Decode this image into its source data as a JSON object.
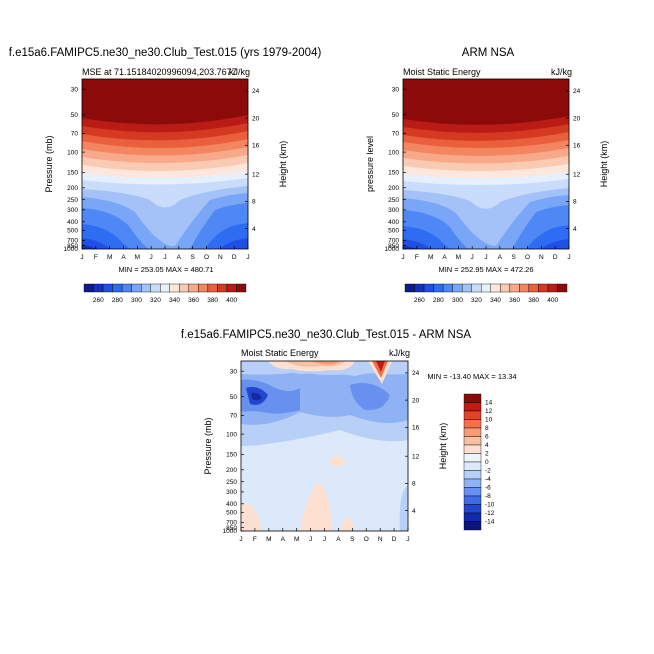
{
  "chart_data": [
    {
      "type": "heatmap",
      "panel": "model",
      "title": "f.e15a6.FAMIPC5.ne30_ne30.Club_Test.015 (yrs 1979-2004)",
      "left_label": "MSE at 71.15184020996094,203.7677",
      "right_label": "kJ/kg",
      "ylabel_left": "Pressure (mb)",
      "ylabel_right": "Height (km)",
      "x_ticks": [
        "J",
        "F",
        "M",
        "A",
        "M",
        "J",
        "J",
        "A",
        "S",
        "O",
        "N",
        "D",
        "J"
      ],
      "pressure_ticks": [
        "30",
        "50",
        "70",
        "100",
        "150",
        "200",
        "250",
        "300",
        "400",
        "500",
        "700",
        "850",
        "1000"
      ],
      "height_ticks": [
        "24",
        "20",
        "16",
        "12",
        "8",
        "4"
      ],
      "stats": "MIN = 253.05 MAX = 480.71",
      "min": 253.05,
      "max": 480.71,
      "colorbar": [
        "260",
        "280",
        "300",
        "320",
        "340",
        "360",
        "380",
        "400"
      ]
    },
    {
      "type": "heatmap",
      "panel": "observation",
      "title": "ARM NSA",
      "left_label": "Moist Static Energy",
      "right_label": "kJ/kg",
      "ylabel_left": "pressure level",
      "ylabel_right": "Height (km)",
      "x_ticks": [
        "J",
        "F",
        "M",
        "A",
        "M",
        "J",
        "J",
        "A",
        "S",
        "O",
        "N",
        "D",
        "J"
      ],
      "pressure_ticks": [
        "30",
        "50",
        "70",
        "100",
        "150",
        "200",
        "250",
        "300",
        "400",
        "500",
        "700",
        "850",
        "1000"
      ],
      "height_ticks": [
        "24",
        "20",
        "16",
        "12",
        "8",
        "4"
      ],
      "stats": "MIN = 252.95 MAX = 472.26",
      "min": 252.95,
      "max": 472.26,
      "colorbar": [
        "260",
        "280",
        "300",
        "320",
        "340",
        "360",
        "380",
        "400"
      ]
    },
    {
      "type": "heatmap",
      "panel": "difference",
      "title": "f.e15a6.FAMIPC5.ne30_ne30.Club_Test.015 - ARM NSA",
      "left_label": "Moist Static Energy",
      "right_label": "kJ/kg",
      "ylabel_left": "Pressure (mb)",
      "ylabel_right": "Height (km)",
      "x_ticks": [
        "J",
        "F",
        "M",
        "A",
        "M",
        "J",
        "J",
        "A",
        "S",
        "O",
        "N",
        "D",
        "J"
      ],
      "pressure_ticks": [
        "30",
        "50",
        "70",
        "100",
        "150",
        "200",
        "250",
        "300",
        "400",
        "500",
        "700",
        "850",
        "1000"
      ],
      "height_ticks": [
        "24",
        "20",
        "16",
        "12",
        "8",
        "4"
      ],
      "stats": "MIN = -13.40 MAX =  13.34",
      "min": -13.4,
      "max": 13.34,
      "colorbar": [
        "14",
        "12",
        "10",
        "8",
        "6",
        "4",
        "2",
        "0",
        "-2",
        "-4",
        "-6",
        "-8",
        "-10",
        "-12",
        "-14"
      ]
    }
  ],
  "colors": {
    "full_scale": [
      "#0c1a8a",
      "#1530c0",
      "#1f4fe6",
      "#2e6cf2",
      "#4d88f5",
      "#7aa6f7",
      "#a4c2f8",
      "#c9dcfb",
      "#e6f0fd",
      "#fde7dc",
      "#fbcab3",
      "#f8a98a",
      "#f38561",
      "#ea5f3c",
      "#d43a22",
      "#b81c14",
      "#8b0a0a"
    ],
    "diff_scale": [
      "#8b0a0a",
      "#c21a14",
      "#e2442a",
      "#f2714a",
      "#f69b76",
      "#f9bfa3",
      "#fde0d0",
      "#dce9fb",
      "#b8d0f8",
      "#8fb2f4",
      "#6790ef",
      "#3f6be6",
      "#2247cf",
      "#1229a8",
      "#0a1480"
    ]
  }
}
